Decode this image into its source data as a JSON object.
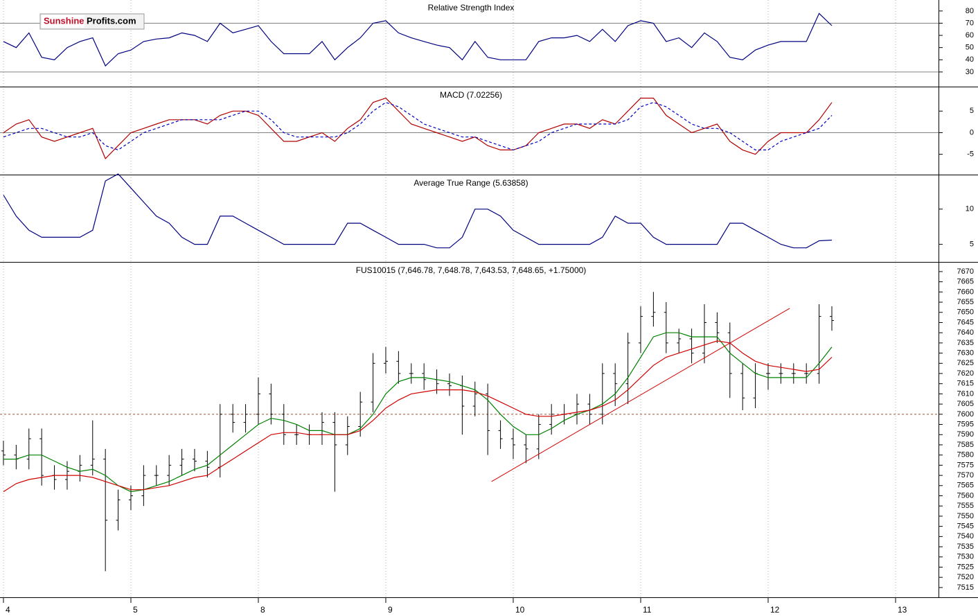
{
  "logo": {
    "brand": "Sunshine",
    "site": "Profits.com"
  },
  "chart_data": [
    {
      "type": "line",
      "title": "Relative Strength Index",
      "x": [
        0,
        0.1,
        0.2,
        0.3,
        0.4,
        0.5,
        0.6,
        0.7,
        0.8,
        0.9,
        1,
        1.1,
        1.2,
        1.3,
        1.4,
        1.5,
        1.6,
        1.7,
        1.8,
        1.9,
        2,
        2.1,
        2.2,
        2.3,
        2.4,
        2.5,
        2.6,
        2.7,
        2.8,
        2.9,
        3,
        3.1,
        3.2,
        3.3,
        3.4,
        3.5,
        3.6,
        3.7,
        3.8,
        3.9,
        4,
        4.1,
        4.2,
        4.3,
        4.4,
        4.5,
        4.6,
        4.7,
        4.8,
        4.9,
        5,
        5.1,
        5.2,
        5.3,
        5.4,
        5.5,
        5.6,
        5.7,
        5.8,
        5.9,
        6,
        6.1,
        6.2,
        6.3,
        6.4,
        6.5
      ],
      "xlim": [
        -0.027,
        7.337
      ],
      "ylim": [
        18,
        89
      ],
      "yticks": [
        30,
        40,
        50,
        60,
        70,
        80
      ],
      "hlines": [
        {
          "value": 70,
          "color": "#808080"
        },
        {
          "value": 30,
          "color": "#808080"
        }
      ],
      "series": [
        {
          "color": "#000080",
          "values": [
            55,
            50,
            62,
            42,
            40,
            50,
            55,
            58,
            35,
            45,
            48,
            55,
            57,
            58,
            62,
            60,
            55,
            70,
            62,
            65,
            68,
            55,
            45,
            45,
            45,
            55,
            40,
            50,
            58,
            70,
            72,
            62,
            58,
            55,
            52,
            50,
            40,
            55,
            42,
            40,
            40,
            40,
            55,
            58,
            58,
            60,
            55,
            65,
            55,
            68,
            72,
            70,
            55,
            58,
            50,
            62,
            55,
            42,
            40,
            48,
            52,
            55,
            55,
            55,
            78,
            68
          ]
        }
      ]
    },
    {
      "type": "line",
      "title": "MACD (7.02256)",
      "x": [
        0,
        0.1,
        0.2,
        0.3,
        0.4,
        0.5,
        0.6,
        0.7,
        0.8,
        0.9,
        1,
        1.1,
        1.2,
        1.3,
        1.4,
        1.5,
        1.6,
        1.7,
        1.8,
        1.9,
        2,
        2.1,
        2.2,
        2.3,
        2.4,
        2.5,
        2.6,
        2.7,
        2.8,
        2.9,
        3,
        3.1,
        3.2,
        3.3,
        3.4,
        3.5,
        3.6,
        3.7,
        3.8,
        3.9,
        4,
        4.1,
        4.2,
        4.3,
        4.4,
        4.5,
        4.6,
        4.7,
        4.8,
        4.9,
        5,
        5.1,
        5.2,
        5.3,
        5.4,
        5.5,
        5.6,
        5.7,
        5.8,
        5.9,
        6,
        6.1,
        6.2,
        6.3,
        6.4,
        6.5
      ],
      "xlim": [
        -0.027,
        7.337
      ],
      "ylim": [
        -9.7,
        10.5
      ],
      "yticks": [
        -5,
        0,
        5
      ],
      "hlines": [
        {
          "value": 0,
          "color": "#808080"
        }
      ],
      "series": [
        {
          "color": "#b00000",
          "dashed": false,
          "values": [
            0,
            2,
            3,
            -1,
            -2,
            -1,
            0,
            1,
            -6,
            -3,
            0,
            1,
            2,
            3,
            3,
            3,
            2,
            4,
            5,
            5,
            4,
            1,
            -2,
            -2,
            -1,
            0,
            -2,
            1,
            3,
            7,
            8,
            5,
            2,
            1,
            0,
            -1,
            -2,
            -1,
            -3,
            -4,
            -4,
            -3,
            0,
            1,
            2,
            2,
            1,
            3,
            2,
            5,
            8,
            8,
            4,
            2,
            0,
            1,
            2,
            -2,
            -4,
            -5,
            -2,
            0,
            0,
            0,
            3,
            7
          ]
        },
        {
          "color": "#0000c0",
          "dashed": true,
          "values": [
            -1,
            0,
            1,
            1,
            0,
            -1,
            -1,
            0,
            -3,
            -4,
            -2,
            0,
            1,
            2,
            3,
            3,
            3,
            3,
            4,
            5,
            5,
            3,
            0,
            -1,
            -1,
            -1,
            -1,
            0,
            2,
            5,
            7,
            6,
            4,
            2,
            1,
            0,
            -1,
            -1,
            -2,
            -3,
            -4,
            -3,
            -2,
            0,
            1,
            2,
            2,
            2,
            2,
            3,
            6,
            7,
            6,
            4,
            2,
            1,
            1,
            0,
            -2,
            -4,
            -4,
            -2,
            -1,
            0,
            1,
            4
          ]
        }
      ]
    },
    {
      "type": "line",
      "title": "Average True Range (5.63858)",
      "x": [
        0,
        0.1,
        0.2,
        0.3,
        0.4,
        0.5,
        0.6,
        0.7,
        0.8,
        0.9,
        1,
        1.1,
        1.2,
        1.3,
        1.4,
        1.5,
        1.6,
        1.7,
        1.8,
        1.9,
        2,
        2.1,
        2.2,
        2.3,
        2.4,
        2.5,
        2.6,
        2.7,
        2.8,
        2.9,
        3,
        3.1,
        3.2,
        3.3,
        3.4,
        3.5,
        3.6,
        3.7,
        3.8,
        3.9,
        4,
        4.1,
        4.2,
        4.3,
        4.4,
        4.5,
        4.6,
        4.7,
        4.8,
        4.9,
        5,
        5.1,
        5.2,
        5.3,
        5.4,
        5.5,
        5.6,
        5.7,
        5.8,
        5.9,
        6,
        6.1,
        6.2,
        6.3,
        6.4,
        6.5
      ],
      "xlim": [
        -0.027,
        7.337
      ],
      "ylim": [
        2.5,
        14.8
      ],
      "yticks": [
        5,
        10
      ],
      "series": [
        {
          "color": "#000080",
          "values": [
            12,
            9,
            7,
            6,
            6,
            6,
            6,
            7,
            14,
            15,
            13,
            11,
            9,
            8,
            6,
            5,
            5,
            9,
            9,
            8,
            7,
            6,
            5,
            5,
            5,
            5,
            5,
            8,
            8,
            7,
            6,
            5,
            5,
            5,
            4.5,
            4.5,
            6,
            10,
            10,
            9,
            7,
            6,
            5,
            5,
            5,
            5,
            5,
            6,
            9,
            8,
            8,
            6,
            5,
            5,
            5,
            5,
            5,
            8,
            8,
            7,
            6,
            5,
            4.5,
            4.5,
            5.5,
            5.6
          ]
        }
      ]
    },
    {
      "type": "ohlc",
      "title": "FUS10015 (7,646.78, 7,648.78, 7,643.53, 7,648.65, +1.75000)",
      "x": [
        0,
        0.1,
        0.2,
        0.3,
        0.4,
        0.5,
        0.6,
        0.7,
        0.8,
        0.9,
        1,
        1.1,
        1.2,
        1.3,
        1.4,
        1.5,
        1.6,
        1.7,
        1.8,
        1.9,
        2,
        2.1,
        2.2,
        2.3,
        2.4,
        2.5,
        2.6,
        2.7,
        2.8,
        2.9,
        3,
        3.1,
        3.2,
        3.3,
        3.4,
        3.5,
        3.6,
        3.7,
        3.8,
        3.9,
        4,
        4.1,
        4.2,
        4.3,
        4.4,
        4.5,
        4.6,
        4.7,
        4.8,
        4.9,
        5,
        5.1,
        5.2,
        5.3,
        5.4,
        5.5,
        5.6,
        5.7,
        5.8,
        5.9,
        6,
        6.1,
        6.2,
        6.3,
        6.4,
        6.5
      ],
      "open": [
        7582,
        7580,
        7578,
        7588,
        7570,
        7568,
        7572,
        7575,
        7578,
        7548,
        7558,
        7560,
        7570,
        7570,
        7575,
        7578,
        7577,
        7574,
        7600,
        7596,
        7600,
        7610,
        7600,
        7590,
        7590,
        7590,
        7596,
        7585,
        7594,
        7606,
        7625,
        7626,
        7620,
        7620,
        7617,
        7615,
        7614,
        7604,
        7610,
        7592,
        7588,
        7585,
        7583,
        7595,
        7600,
        7600,
        7605,
        7600,
        7620,
        7615,
        7635,
        7648,
        7650,
        7635,
        7637,
        7630,
        7645,
        7640,
        7620,
        7608,
        7620,
        7620,
        7620,
        7620,
        7620,
        7648
      ],
      "high": [
        7587,
        7585,
        7593,
        7593,
        7575,
        7577,
        7580,
        7597,
        7583,
        7563,
        7565,
        7575,
        7575,
        7580,
        7583,
        7583,
        7582,
        7605,
        7605,
        7605,
        7618,
        7615,
        7605,
        7595,
        7595,
        7601,
        7601,
        7599,
        7611,
        7630,
        7633,
        7631,
        7625,
        7625,
        7622,
        7620,
        7619,
        7616,
        7615,
        7597,
        7593,
        7590,
        7600,
        7605,
        7605,
        7610,
        7610,
        7625,
        7625,
        7640,
        7653,
        7660,
        7655,
        7642,
        7642,
        7654,
        7650,
        7645,
        7625,
        7625,
        7625,
        7625,
        7625,
        7625,
        7654,
        7653
      ],
      "low": [
        7575,
        7573,
        7573,
        7565,
        7563,
        7563,
        7567,
        7570,
        7523,
        7543,
        7553,
        7555,
        7565,
        7565,
        7570,
        7572,
        7569,
        7569,
        7591,
        7591,
        7595,
        7595,
        7585,
        7585,
        7585,
        7585,
        7562,
        7580,
        7589,
        7601,
        7620,
        7615,
        7615,
        7612,
        7610,
        7609,
        7590,
        7599,
        7580,
        7583,
        7578,
        7576,
        7578,
        7590,
        7595,
        7595,
        7595,
        7595,
        7604,
        7605,
        7630,
        7643,
        7630,
        7630,
        7625,
        7625,
        7635,
        7608,
        7602,
        7603,
        7612,
        7615,
        7615,
        7615,
        7615,
        7641
      ],
      "close": [
        7580,
        7578,
        7588,
        7570,
        7568,
        7572,
        7575,
        7578,
        7548,
        7558,
        7560,
        7570,
        7570,
        7575,
        7578,
        7577,
        7574,
        7600,
        7596,
        7600,
        7610,
        7600,
        7590,
        7590,
        7590,
        7596,
        7585,
        7594,
        7606,
        7625,
        7626,
        7620,
        7620,
        7617,
        7615,
        7614,
        7604,
        7610,
        7592,
        7588,
        7585,
        7583,
        7595,
        7600,
        7600,
        7605,
        7600,
        7620,
        7615,
        7635,
        7648,
        7650,
        7635,
        7637,
        7630,
        7645,
        7640,
        7620,
        7608,
        7620,
        7620,
        7620,
        7620,
        7620,
        7648,
        7646
      ],
      "bar_color": "#000000",
      "series": [
        {
          "color": "#008000",
          "values": [
            7578,
            7578,
            7580,
            7580,
            7577,
            7574,
            7572,
            7573,
            7570,
            7565,
            7562,
            7563,
            7565,
            7567,
            7570,
            7573,
            7575,
            7580,
            7585,
            7590,
            7595,
            7598,
            7597,
            7595,
            7592,
            7592,
            7590,
            7590,
            7593,
            7600,
            7610,
            7616,
            7618,
            7618,
            7617,
            7616,
            7614,
            7612,
            7607,
            7600,
            7594,
            7590,
            7590,
            7593,
            7597,
            7600,
            7602,
            7605,
            7610,
            7618,
            7628,
            7638,
            7640,
            7640,
            7638,
            7638,
            7638,
            7630,
            7625,
            7620,
            7618,
            7618,
            7618,
            7618,
            7625,
            7633
          ]
        },
        {
          "color": "#d00000",
          "values": [
            7562,
            7566,
            7568,
            7569,
            7570,
            7570,
            7570,
            7569,
            7567,
            7565,
            7563,
            7563,
            7564,
            7565,
            7567,
            7569,
            7570,
            7574,
            7578,
            7582,
            7586,
            7590,
            7591,
            7591,
            7590,
            7590,
            7590,
            7590,
            7592,
            7597,
            7603,
            7607,
            7610,
            7611,
            7612,
            7612,
            7612,
            7611,
            7609,
            7606,
            7603,
            7600,
            7599,
            7599,
            7600,
            7601,
            7602,
            7604,
            7607,
            7612,
            7618,
            7624,
            7628,
            7630,
            7632,
            7634,
            7636,
            7635,
            7630,
            7626,
            7624,
            7623,
            7622,
            7621,
            7622,
            7628
          ]
        }
      ],
      "hlines": [
        {
          "value": 7600,
          "color": "#a0522d",
          "dashed": true
        }
      ],
      "trendlines": [
        {
          "x": [
            3.83,
            6.17
          ],
          "y": [
            7567,
            7652
          ],
          "color": "#d00000"
        }
      ],
      "xlim": [
        -0.027,
        7.337
      ],
      "ylim": [
        7510.2,
        7674.4
      ],
      "yticks": [
        7515,
        7520,
        7525,
        7530,
        7535,
        7540,
        7545,
        7550,
        7555,
        7560,
        7565,
        7570,
        7575,
        7580,
        7585,
        7590,
        7595,
        7600,
        7605,
        7610,
        7615,
        7620,
        7625,
        7630,
        7635,
        7640,
        7645,
        7650,
        7655,
        7660,
        7665,
        7670
      ],
      "xticks": [
        {
          "value": 0,
          "label": "4"
        },
        {
          "value": 1,
          "label": "5"
        },
        {
          "value": 2,
          "label": "8"
        },
        {
          "value": 3,
          "label": "9"
        },
        {
          "value": 4,
          "label": "10"
        },
        {
          "value": 5,
          "label": "11"
        },
        {
          "value": 6,
          "label": "12"
        },
        {
          "value": 7,
          "label": "13"
        }
      ]
    }
  ]
}
